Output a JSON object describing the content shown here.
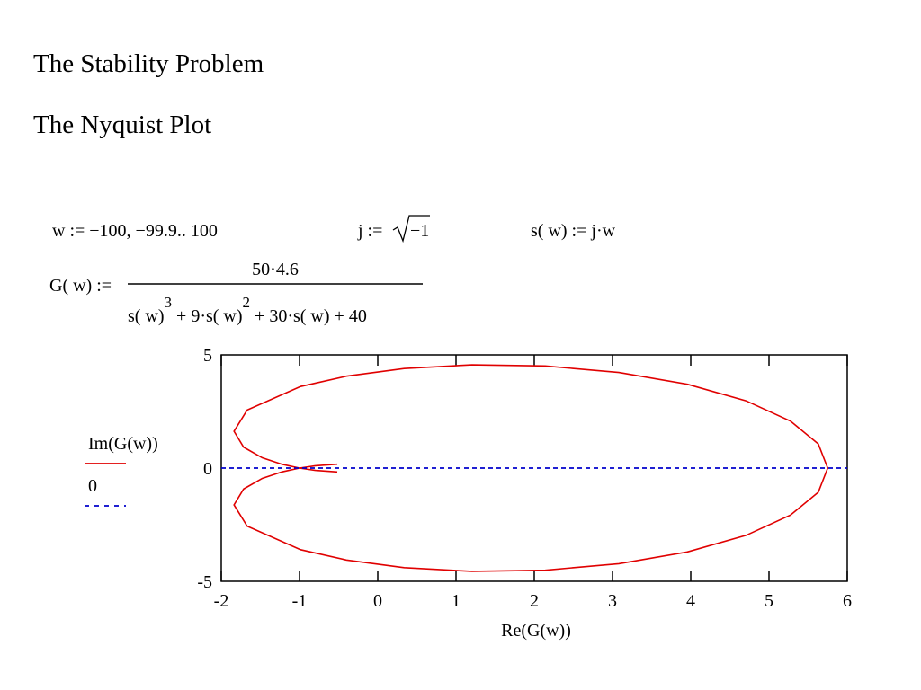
{
  "header": {
    "title": "The Stability Problem",
    "subtitle": "The Nyquist Plot"
  },
  "formulas": {
    "w_def": "w := −100, −99.9.. 100",
    "j_lhs": "j :=",
    "j_rad": "−1",
    "s_def": "s( w) := j·w",
    "g_lhs": "G( w) :=",
    "g_num": "50·4.6",
    "g_den": [
      "s( w)",
      "3",
      " + 9·s( w)",
      "2",
      " + 30·s( w) + 40"
    ]
  },
  "chart_data": {
    "type": "line",
    "x_label": "Re(G(w))",
    "xlim": [
      -2,
      6
    ],
    "xticks": [
      -2,
      -1,
      0,
      1,
      2,
      3,
      4,
      5,
      6
    ],
    "ylim": [
      -5,
      5
    ],
    "yticks": [
      -5,
      0,
      5
    ],
    "series": [
      {
        "name": "Im(G(w))",
        "color": "#e00000",
        "dash": false,
        "x": [
          -0.517,
          -0.797,
          -1.0,
          -1.221,
          -1.476,
          -1.714,
          -1.837,
          -1.669,
          -0.986,
          -0.402,
          0.338,
          1.203,
          2.14,
          3.081,
          3.957,
          4.705,
          5.274,
          5.63,
          5.75,
          5.63,
          5.274,
          4.705,
          3.957,
          3.081,
          2.14,
          1.203,
          0.338,
          -0.402,
          -0.986,
          -1.669,
          -1.837,
          -1.714,
          -1.476,
          -1.221,
          -1.0,
          -0.797,
          -0.517
        ],
        "values": [
          -0.171,
          -0.101,
          0,
          0.165,
          0.455,
          0.923,
          1.625,
          2.565,
          3.604,
          4.059,
          4.397,
          4.561,
          4.51,
          4.222,
          3.702,
          2.973,
          2.078,
          1.068,
          0,
          -1.068,
          -2.078,
          -2.973,
          -3.702,
          -4.222,
          -4.51,
          -4.561,
          -4.397,
          -4.059,
          -3.604,
          -2.565,
          -1.625,
          -0.923,
          -0.455,
          -0.165,
          0,
          0.101,
          0.171
        ]
      },
      {
        "name": "0",
        "color": "#0000cc",
        "dash": true,
        "x": [
          -2,
          6
        ],
        "values": [
          0,
          0
        ]
      }
    ]
  }
}
